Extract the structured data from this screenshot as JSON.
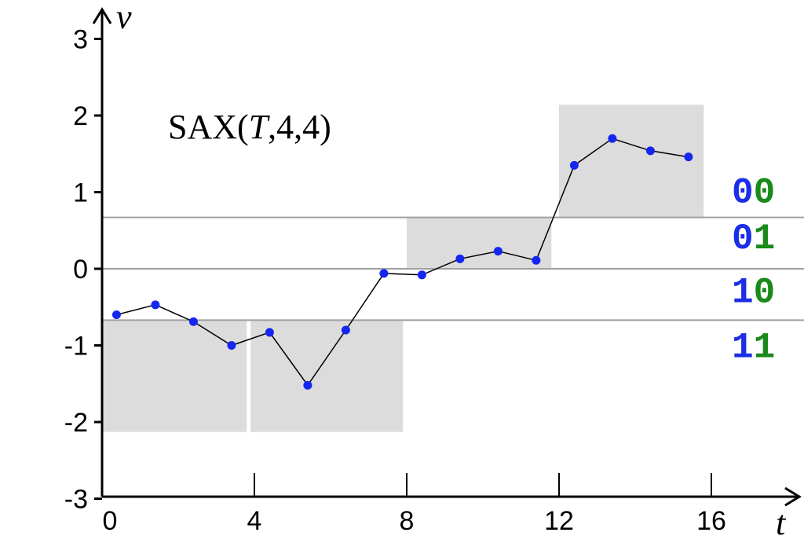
{
  "chart_data": {
    "type": "line",
    "title_parts": [
      "SAX(",
      "T",
      ",4,4)"
    ],
    "xlabel": "t",
    "ylabel": "v",
    "xlim": [
      0,
      18
    ],
    "ylim": [
      -3,
      3.3
    ],
    "xticks": [
      0,
      4,
      8,
      12,
      16
    ],
    "yticks": [
      3,
      2,
      1,
      0,
      -1,
      -2,
      -3
    ],
    "x": [
      0.38,
      1.4,
      2.4,
      3.4,
      4.4,
      5.4,
      6.4,
      7.4,
      8.4,
      9.4,
      10.4,
      11.4,
      12.4,
      13.4,
      14.4,
      15.4
    ],
    "y": [
      -0.6,
      -0.47,
      -0.69,
      -1.0,
      -0.83,
      -1.52,
      -0.8,
      -0.06,
      -0.08,
      0.13,
      0.23,
      0.11,
      1.35,
      1.7,
      1.54,
      1.46
    ],
    "breakpoints": [
      0.67,
      0,
      -0.67
    ],
    "segments": [
      {
        "x_start": 0,
        "x_end": 3.8,
        "y_low": -2.13,
        "y_high": -0.67
      },
      {
        "x_start": 3.9,
        "x_end": 7.9,
        "y_low": -2.13,
        "y_high": -0.67
      },
      {
        "x_start": 8.0,
        "x_end": 11.8,
        "y_low": 0,
        "y_high": 0.67
      },
      {
        "x_start": 12.0,
        "x_end": 15.8,
        "y_low": 0.67,
        "y_high": 2.14
      }
    ],
    "symbol_codes": [
      {
        "first": "0",
        "second": "0",
        "level": 1.03
      },
      {
        "first": "0",
        "second": "1",
        "level": 0.43
      },
      {
        "first": "1",
        "second": "0",
        "level": -0.27
      },
      {
        "first": "1",
        "second": "1",
        "level": -0.99
      }
    ],
    "colors": {
      "point": "#1526f0",
      "line": "#000000",
      "region": "#dcdcdc",
      "breakpoint": "#a0a0a0",
      "code_first": "#1c2ee6",
      "code_second": "#1a8a1a"
    }
  }
}
